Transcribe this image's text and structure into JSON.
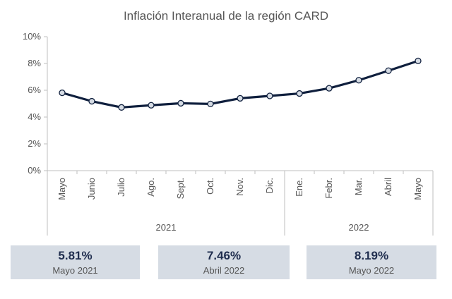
{
  "chart_data": {
    "type": "line",
    "title": "Inflación Interanual de la región CARD",
    "categories": [
      "Mayo",
      "Junio",
      "Julio",
      "Ago.",
      "Sept.",
      "Oct.",
      "Nov.",
      "Dic.",
      "Ene.",
      "Febr.",
      "Mar.",
      "Abril",
      "Mayo"
    ],
    "groups": [
      {
        "label": "2021",
        "count": 8
      },
      {
        "label": "2022",
        "count": 5
      }
    ],
    "series": [
      {
        "values": [
          5.81,
          5.18,
          4.72,
          4.88,
          5.03,
          4.98,
          5.4,
          5.58,
          5.76,
          6.15,
          6.75,
          7.46,
          8.19
        ]
      }
    ],
    "ylim": [
      0,
      10
    ],
    "yticks": [
      "0%",
      "2%",
      "4%",
      "6%",
      "8%",
      "10%"
    ],
    "line_color": "#0f1f3d",
    "marker_fill": "#d6dce4",
    "grid": false
  },
  "cards": [
    {
      "value": "5.81%",
      "label": "Mayo 2021"
    },
    {
      "value": "7.46%",
      "label": "Abril 2022"
    },
    {
      "value": "8.19%",
      "label": "Mayo 2022"
    }
  ]
}
